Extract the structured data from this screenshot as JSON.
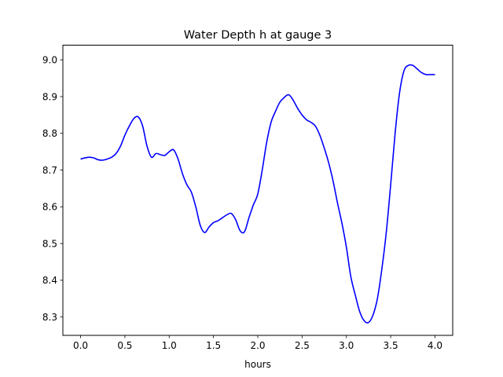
{
  "chart_data": {
    "type": "line",
    "title": "Water Depth h at gauge 3",
    "xlabel": "hours",
    "ylabel": "",
    "xlim": [
      -0.2,
      4.2
    ],
    "ylim": [
      8.25,
      9.04
    ],
    "xticks": [
      0.0,
      0.5,
      1.0,
      1.5,
      2.0,
      2.5,
      3.0,
      3.5,
      4.0
    ],
    "xtick_labels": [
      "0.0",
      "0.5",
      "1.0",
      "1.5",
      "2.0",
      "2.5",
      "3.0",
      "3.5",
      "4.0"
    ],
    "yticks": [
      8.3,
      8.4,
      8.5,
      8.6,
      8.7,
      8.8,
      8.9,
      9.0
    ],
    "ytick_labels": [
      "8.3",
      "8.4",
      "8.5",
      "8.6",
      "8.7",
      "8.8",
      "8.9",
      "9.0"
    ],
    "grid": false,
    "legend": "none",
    "series": [
      {
        "color": "#0000ff",
        "x": [
          0.0,
          0.05,
          0.1,
          0.15,
          0.2,
          0.25,
          0.3,
          0.35,
          0.4,
          0.45,
          0.5,
          0.55,
          0.6,
          0.65,
          0.7,
          0.75,
          0.8,
          0.85,
          0.9,
          0.95,
          1.0,
          1.05,
          1.1,
          1.15,
          1.2,
          1.25,
          1.3,
          1.35,
          1.4,
          1.45,
          1.5,
          1.55,
          1.6,
          1.65,
          1.7,
          1.75,
          1.8,
          1.85,
          1.9,
          1.95,
          2.0,
          2.05,
          2.1,
          2.15,
          2.2,
          2.25,
          2.3,
          2.35,
          2.4,
          2.45,
          2.5,
          2.55,
          2.6,
          2.65,
          2.7,
          2.75,
          2.8,
          2.85,
          2.9,
          2.95,
          3.0,
          3.05,
          3.1,
          3.15,
          3.2,
          3.25,
          3.3,
          3.35,
          3.4,
          3.45,
          3.5,
          3.55,
          3.6,
          3.65,
          3.7,
          3.75,
          3.8,
          3.85,
          3.9,
          3.95,
          4.0
        ],
        "y": [
          8.73,
          8.733,
          8.735,
          8.733,
          8.728,
          8.727,
          8.73,
          8.735,
          8.745,
          8.765,
          8.795,
          8.82,
          8.84,
          8.845,
          8.82,
          8.765,
          8.735,
          8.745,
          8.742,
          8.74,
          8.75,
          8.755,
          8.73,
          8.69,
          8.66,
          8.64,
          8.6,
          8.55,
          8.53,
          8.545,
          8.557,
          8.562,
          8.57,
          8.578,
          8.582,
          8.565,
          8.535,
          8.532,
          8.57,
          8.605,
          8.635,
          8.7,
          8.775,
          8.83,
          8.86,
          8.885,
          8.898,
          8.905,
          8.89,
          8.868,
          8.85,
          8.837,
          8.83,
          8.82,
          8.795,
          8.76,
          8.72,
          8.67,
          8.61,
          8.555,
          8.49,
          8.41,
          8.36,
          8.315,
          8.29,
          8.285,
          8.305,
          8.35,
          8.43,
          8.53,
          8.66,
          8.8,
          8.91,
          8.97,
          8.985,
          8.985,
          8.975,
          8.965,
          8.96,
          8.96,
          8.96
        ]
      }
    ]
  }
}
